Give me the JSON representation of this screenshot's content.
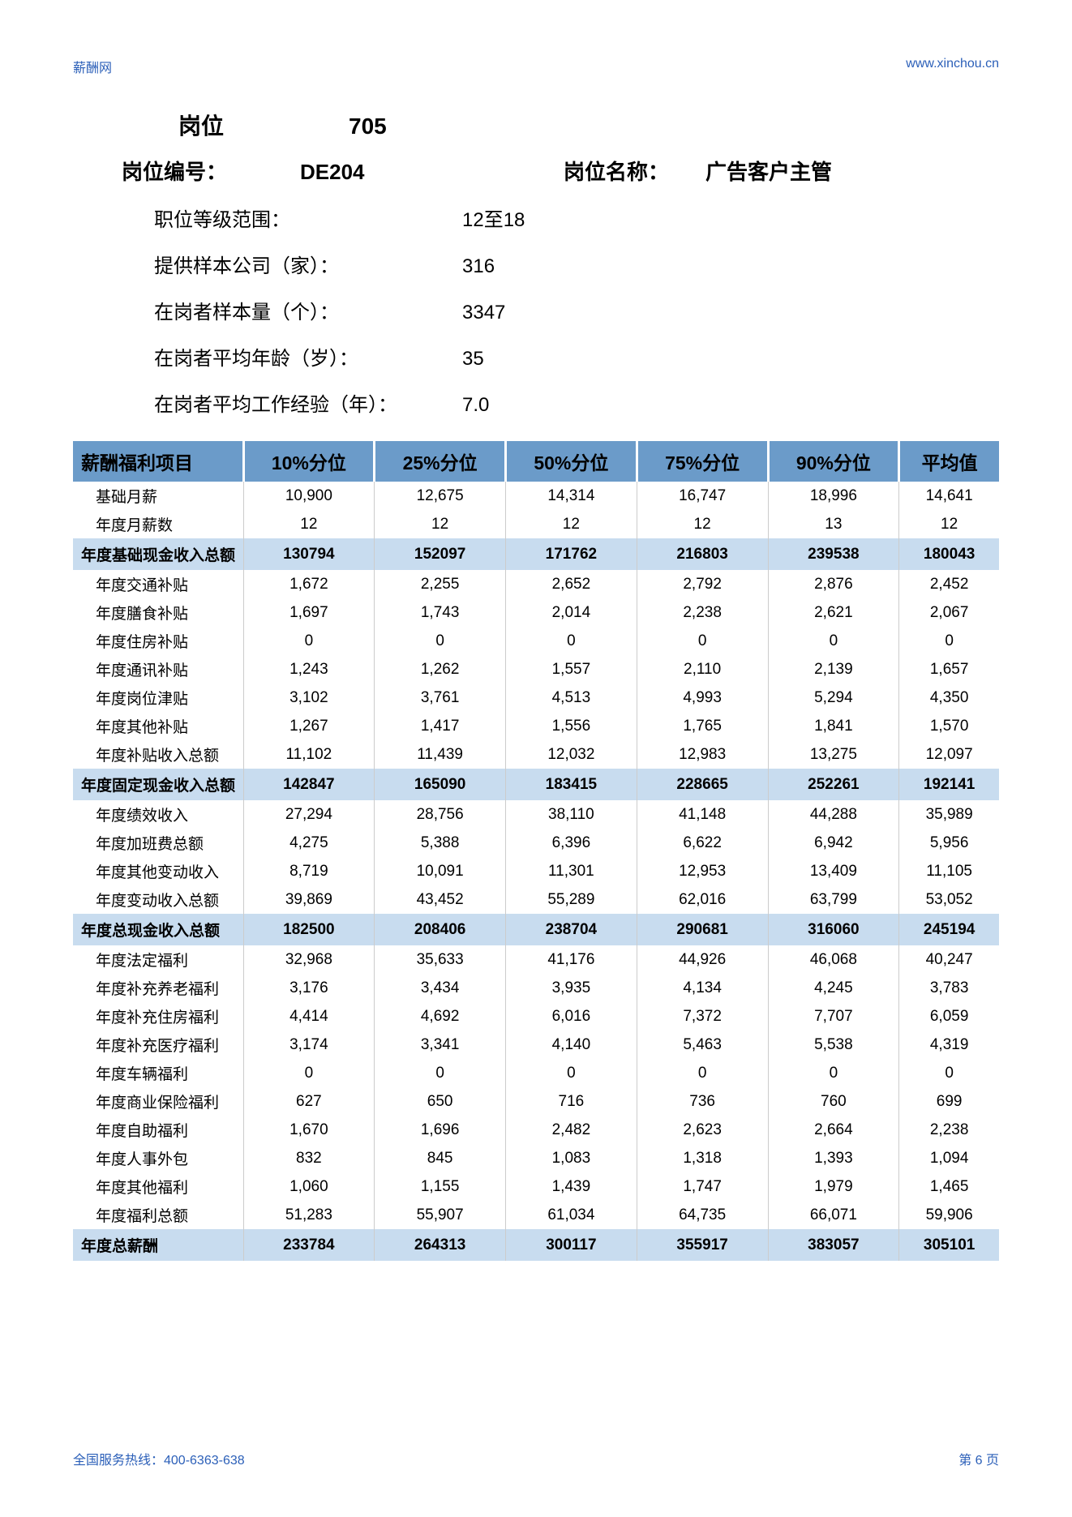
{
  "header": {
    "left": "薪酬网",
    "right": "www.xinchou.cn"
  },
  "position": {
    "title_lbl": "岗位",
    "title_val": "705",
    "code_lbl": "岗位编号：",
    "code_val": "DE204",
    "name_lbl": "岗位名称：",
    "name_val": "广告客户主管"
  },
  "info": [
    {
      "lbl": "职位等级范围：",
      "val": "12至18"
    },
    {
      "lbl": "提供样本公司（家）：",
      "val": "316"
    },
    {
      "lbl": "在岗者样本量（个）：",
      "val": "3347"
    },
    {
      "lbl": "在岗者平均年龄（岁）：",
      "val": "35"
    },
    {
      "lbl": "在岗者平均工作经验（年）：",
      "val": "7.0"
    }
  ],
  "table": {
    "headers": [
      "薪酬福利项目",
      "10%分位",
      "25%分位",
      "50%分位",
      "75%分位",
      "90%分位",
      "平均值"
    ],
    "rows": [
      {
        "type": "n",
        "c": [
          "基础月薪",
          "10,900",
          "12,675",
          "14,314",
          "16,747",
          "18,996",
          "14,641"
        ]
      },
      {
        "type": "n",
        "c": [
          "年度月薪数",
          "12",
          "12",
          "12",
          "12",
          "13",
          "12"
        ]
      },
      {
        "type": "s",
        "c": [
          "年度基础现金收入总额",
          "130794",
          "152097",
          "171762",
          "216803",
          "239538",
          "180043"
        ]
      },
      {
        "type": "n",
        "c": [
          "年度交通补贴",
          "1,672",
          "2,255",
          "2,652",
          "2,792",
          "2,876",
          "2,452"
        ]
      },
      {
        "type": "n",
        "c": [
          "年度膳食补贴",
          "1,697",
          "1,743",
          "2,014",
          "2,238",
          "2,621",
          "2,067"
        ]
      },
      {
        "type": "n",
        "c": [
          "年度住房补贴",
          "0",
          "0",
          "0",
          "0",
          "0",
          "0"
        ]
      },
      {
        "type": "n",
        "c": [
          "年度通讯补贴",
          "1,243",
          "1,262",
          "1,557",
          "2,110",
          "2,139",
          "1,657"
        ]
      },
      {
        "type": "n",
        "c": [
          "年度岗位津贴",
          "3,102",
          "3,761",
          "4,513",
          "4,993",
          "5,294",
          "4,350"
        ]
      },
      {
        "type": "n",
        "c": [
          "年度其他补贴",
          "1,267",
          "1,417",
          "1,556",
          "1,765",
          "1,841",
          "1,570"
        ]
      },
      {
        "type": "n",
        "c": [
          "年度补贴收入总额",
          "11,102",
          "11,439",
          "12,032",
          "12,983",
          "13,275",
          "12,097"
        ]
      },
      {
        "type": "s",
        "c": [
          "年度固定现金收入总额",
          "142847",
          "165090",
          "183415",
          "228665",
          "252261",
          "192141"
        ]
      },
      {
        "type": "n",
        "c": [
          "年度绩效收入",
          "27,294",
          "28,756",
          "38,110",
          "41,148",
          "44,288",
          "35,989"
        ]
      },
      {
        "type": "n",
        "c": [
          "年度加班费总额",
          "4,275",
          "5,388",
          "6,396",
          "6,622",
          "6,942",
          "5,956"
        ]
      },
      {
        "type": "n",
        "c": [
          "年度其他变动收入",
          "8,719",
          "10,091",
          "11,301",
          "12,953",
          "13,409",
          "11,105"
        ]
      },
      {
        "type": "n",
        "c": [
          "年度变动收入总额",
          "39,869",
          "43,452",
          "55,289",
          "62,016",
          "63,799",
          "53,052"
        ]
      },
      {
        "type": "s",
        "c": [
          "年度总现金收入总额",
          "182500",
          "208406",
          "238704",
          "290681",
          "316060",
          "245194"
        ]
      },
      {
        "type": "n",
        "c": [
          "年度法定福利",
          "32,968",
          "35,633",
          "41,176",
          "44,926",
          "46,068",
          "40,247"
        ]
      },
      {
        "type": "n",
        "c": [
          "年度补充养老福利",
          "3,176",
          "3,434",
          "3,935",
          "4,134",
          "4,245",
          "3,783"
        ]
      },
      {
        "type": "n",
        "c": [
          "年度补充住房福利",
          "4,414",
          "4,692",
          "6,016",
          "7,372",
          "7,707",
          "6,059"
        ]
      },
      {
        "type": "n",
        "c": [
          "年度补充医疗福利",
          "3,174",
          "3,341",
          "4,140",
          "5,463",
          "5,538",
          "4,319"
        ]
      },
      {
        "type": "n",
        "c": [
          "年度车辆福利",
          "0",
          "0",
          "0",
          "0",
          "0",
          "0"
        ]
      },
      {
        "type": "n",
        "c": [
          "年度商业保险福利",
          "627",
          "650",
          "716",
          "736",
          "760",
          "699"
        ]
      },
      {
        "type": "n",
        "c": [
          "年度自助福利",
          "1,670",
          "1,696",
          "2,482",
          "2,623",
          "2,664",
          "2,238"
        ]
      },
      {
        "type": "n",
        "c": [
          "年度人事外包",
          "832",
          "845",
          "1,083",
          "1,318",
          "1,393",
          "1,094"
        ]
      },
      {
        "type": "n",
        "c": [
          "年度其他福利",
          "1,060",
          "1,155",
          "1,439",
          "1,747",
          "1,979",
          "1,465"
        ]
      },
      {
        "type": "n",
        "c": [
          "年度福利总额",
          "51,283",
          "55,907",
          "61,034",
          "64,735",
          "66,071",
          "59,906"
        ]
      },
      {
        "type": "s",
        "c": [
          "年度总薪酬",
          "233784",
          "264313",
          "300117",
          "355917",
          "383057",
          "305101"
        ]
      }
    ]
  },
  "footer": {
    "left": "全国服务热线：400-6363-638",
    "right": "第 6 页"
  },
  "colors": {
    "header_bg": "#6b9bc9",
    "subtotal_bg": "#c8dcef",
    "link": "#2b5fb8"
  }
}
